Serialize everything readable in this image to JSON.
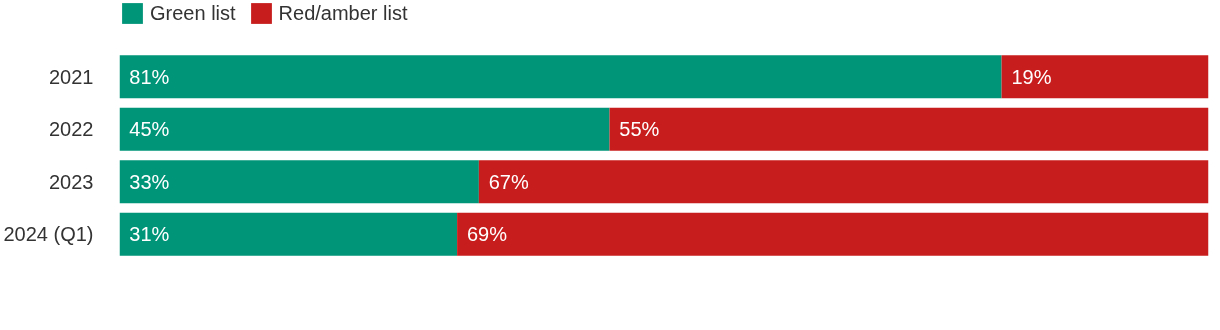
{
  "chart_data": {
    "type": "bar",
    "orientation": "horizontal",
    "stacked": true,
    "legend": "top left",
    "categories": [
      "2021",
      "2022",
      "2023",
      "2024 (Q1)"
    ],
    "series": [
      {
        "name": "Green list",
        "color": "#009479",
        "values": [
          81,
          45,
          33,
          31
        ],
        "value_labels": [
          "81%",
          "45%",
          "33%",
          "31%"
        ]
      },
      {
        "name": "Red/amber list",
        "color": "#c71e1d",
        "values": [
          19,
          55,
          67,
          69
        ],
        "value_labels": [
          "19%",
          "55%",
          "67%",
          "69%"
        ]
      }
    ]
  }
}
